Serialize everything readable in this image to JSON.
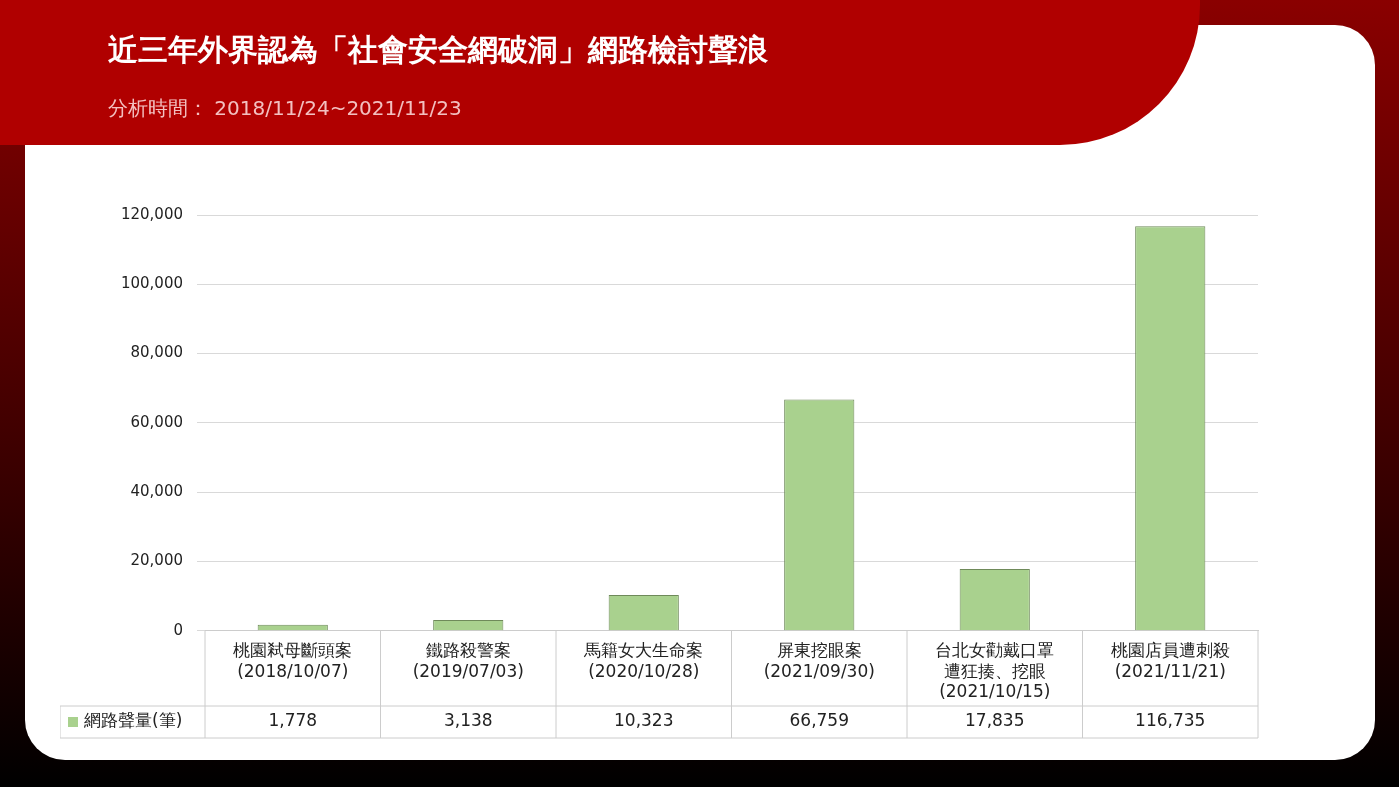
{
  "chart_data": {
    "type": "bar",
    "title": "近三年外界認為「社會安全網破洞」網路檢討聲浪",
    "subtitle": "分析時間： 2018/11/24~2021/11/23",
    "categories": [
      "桃園弒母斷頭案\n(2018/10/07)",
      "鐵路殺警案\n(2019/07/03)",
      "馬籍女大生命案\n(2020/10/28)",
      "屏東挖眼案\n(2021/09/30)",
      "台北女勸戴口罩遭狂揍、挖眼\n(2021/10/15)",
      "桃園店員遭刺殺\n(2021/11/21)"
    ],
    "series": [
      {
        "name": "網路聲量(筆)",
        "color": "#a9d18e",
        "values": [
          1778,
          3138,
          10323,
          66759,
          17835,
          116735
        ],
        "value_labels": [
          "1,778",
          "3,138",
          "10,323",
          "66,759",
          "17,835",
          "116,735"
        ]
      }
    ],
    "ylim": [
      0,
      120000
    ],
    "yticks": [
      {
        "value": 0,
        "label": "0"
      },
      {
        "value": 20000,
        "label": "20,000"
      },
      {
        "value": 40000,
        "label": "40,000"
      },
      {
        "value": 60000,
        "label": "60,000"
      },
      {
        "value": 80000,
        "label": "80,000"
      },
      {
        "value": 100000,
        "label": "100,000"
      },
      {
        "value": 120000,
        "label": "120,000"
      }
    ],
    "grid": "y",
    "legend": "bottom left"
  }
}
